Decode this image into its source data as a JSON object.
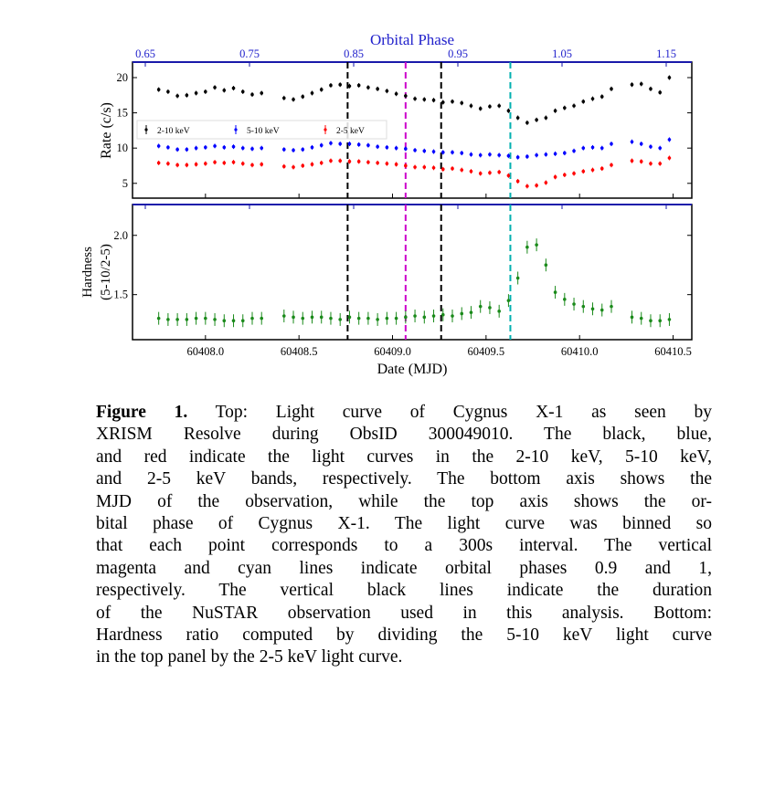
{
  "chart_data": [
    {
      "type": "scatter",
      "panel": "top",
      "title": "",
      "top_axis_label": "Orbital Phase",
      "top_ticks": [
        "0.65",
        "0.75",
        "0.85",
        "0.95",
        "1.05",
        "1.15"
      ],
      "ylabel": "Rate (c/s)",
      "ylim": [
        2.9,
        22.2
      ],
      "yticks": [
        "5",
        "10",
        "15",
        "20"
      ],
      "xlim": [
        60407.61,
        60410.6
      ],
      "legend": {
        "placement": "center-left",
        "entries": [
          "2-10 keV",
          "5-10 keV",
          "2-5 keV"
        ]
      },
      "x": [
        60407.75,
        60407.8,
        60407.85,
        60407.9,
        60407.95,
        60408.0,
        60408.05,
        60408.1,
        60408.15,
        60408.2,
        60408.25,
        60408.3,
        60408.42,
        60408.47,
        60408.52,
        60408.57,
        60408.62,
        60408.67,
        60408.72,
        60408.77,
        60408.82,
        60408.87,
        60408.92,
        60408.97,
        60409.02,
        60409.07,
        60409.12,
        60409.17,
        60409.22,
        60409.27,
        60409.32,
        60409.37,
        60409.42,
        60409.47,
        60409.52,
        60409.57,
        60409.62,
        60409.67,
        60409.72,
        60409.77,
        60409.82,
        60409.87,
        60409.92,
        60409.97,
        60410.02,
        60410.07,
        60410.12,
        60410.17,
        60410.28,
        60410.33,
        60410.38,
        60410.43,
        60410.48
      ],
      "series": [
        {
          "name": "2-10 keV",
          "color": "#000000",
          "values": [
            18.3,
            18.0,
            17.4,
            17.5,
            17.8,
            18.0,
            18.6,
            18.2,
            18.5,
            18.0,
            17.6,
            17.8,
            17.1,
            16.9,
            17.3,
            17.8,
            18.3,
            18.9,
            19.0,
            18.8,
            18.9,
            18.6,
            18.4,
            18.1,
            17.7,
            17.4,
            17.0,
            16.9,
            16.8,
            16.5,
            16.6,
            16.4,
            16.0,
            15.6,
            15.9,
            16.0,
            15.3,
            14.3,
            13.6,
            14.0,
            14.3,
            15.3,
            15.7,
            16.0,
            16.6,
            17.0,
            17.3,
            18.4,
            19.0,
            19.1,
            18.4,
            17.9,
            20.0
          ]
        },
        {
          "name": "5-10 keV",
          "color": "#0000ff",
          "values": [
            10.3,
            10.1,
            9.8,
            9.8,
            10.0,
            10.1,
            10.3,
            10.1,
            10.2,
            10.0,
            9.9,
            10.0,
            9.8,
            9.7,
            9.8,
            10.1,
            10.4,
            10.7,
            10.6,
            10.6,
            10.5,
            10.4,
            10.2,
            10.1,
            10.0,
            9.9,
            9.7,
            9.6,
            9.5,
            9.4,
            9.4,
            9.3,
            9.1,
            9.0,
            9.1,
            9.0,
            8.9,
            8.7,
            8.8,
            9.0,
            9.1,
            9.2,
            9.3,
            9.6,
            10.0,
            10.1,
            10.0,
            10.6,
            10.9,
            10.6,
            10.2,
            10.0,
            11.2
          ]
        },
        {
          "name": "2-5 keV",
          "color": "#ff0000",
          "values": [
            7.9,
            7.8,
            7.6,
            7.6,
            7.7,
            7.8,
            8.0,
            7.9,
            8.0,
            7.8,
            7.6,
            7.7,
            7.4,
            7.3,
            7.5,
            7.7,
            7.9,
            8.2,
            8.2,
            8.1,
            8.1,
            8.0,
            7.9,
            7.8,
            7.7,
            7.5,
            7.3,
            7.3,
            7.2,
            7.0,
            7.1,
            6.9,
            6.7,
            6.4,
            6.5,
            6.6,
            6.1,
            5.3,
            4.6,
            4.7,
            5.1,
            5.9,
            6.2,
            6.4,
            6.7,
            6.9,
            7.1,
            7.6,
            8.2,
            8.1,
            7.8,
            7.8,
            8.6
          ]
        }
      ],
      "vlines": [
        {
          "x": 60408.76,
          "color": "#000000",
          "label": "NuSTAR start"
        },
        {
          "x": 60409.07,
          "color": "#cc00cc",
          "label": "phase 0.9"
        },
        {
          "x": 60409.26,
          "color": "#000000",
          "label": "NuSTAR end"
        },
        {
          "x": 60409.63,
          "color": "#00b0b0",
          "label": "phase 1.0"
        }
      ]
    },
    {
      "type": "scatter",
      "panel": "bottom",
      "ylabel": "Hardness\n(5-10/2-5)",
      "ylabel_lines": [
        "Hardness",
        "(5-10/2-5)"
      ],
      "ylim": [
        1.12,
        2.26
      ],
      "yticks": [
        "1.5",
        "2.0"
      ],
      "xlabel": "Date (MJD)",
      "xticks": [
        "60408.0",
        "60408.5",
        "60409.0",
        "60409.5",
        "60410.0",
        "60410.5"
      ],
      "xlim": [
        60407.61,
        60410.6
      ],
      "series": [
        {
          "name": "Hardness",
          "color": "#1a8a1a",
          "values": [
            1.3,
            1.29,
            1.29,
            1.29,
            1.3,
            1.3,
            1.29,
            1.28,
            1.28,
            1.28,
            1.3,
            1.3,
            1.32,
            1.31,
            1.3,
            1.31,
            1.31,
            1.3,
            1.29,
            1.31,
            1.3,
            1.3,
            1.29,
            1.3,
            1.3,
            1.31,
            1.32,
            1.31,
            1.32,
            1.33,
            1.32,
            1.34,
            1.35,
            1.4,
            1.39,
            1.36,
            1.45,
            1.64,
            1.9,
            1.92,
            1.75,
            1.52,
            1.46,
            1.42,
            1.4,
            1.38,
            1.37,
            1.4,
            1.31,
            1.3,
            1.28,
            1.28,
            1.29
          ]
        }
      ]
    }
  ],
  "caption": {
    "label": "Figure 1.",
    "lines": [
      " Top: Light curve of Cygnus X-1 as seen by",
      "XRISM Resolve during ObsID 300049010. The black, blue,",
      "and red indicate the light curves in the 2-10 keV, 5-10 keV,",
      "and 2-5 keV bands, respectively. The bottom axis shows the",
      "MJD of the observation, while the top axis shows the or-",
      "bital phase of Cygnus X-1. The light curve was binned so",
      "that each point corresponds to a 300s interval. The vertical",
      "magenta and cyan lines indicate orbital phases 0.9 and 1,",
      "respectively. The vertical black lines indicate the duration",
      "of the NuSTAR observation used in this analysis. Bottom:",
      "Hardness ratio computed by dividing the 5-10 keV light curve",
      "in the top panel by the 2-5 keV light curve."
    ]
  }
}
